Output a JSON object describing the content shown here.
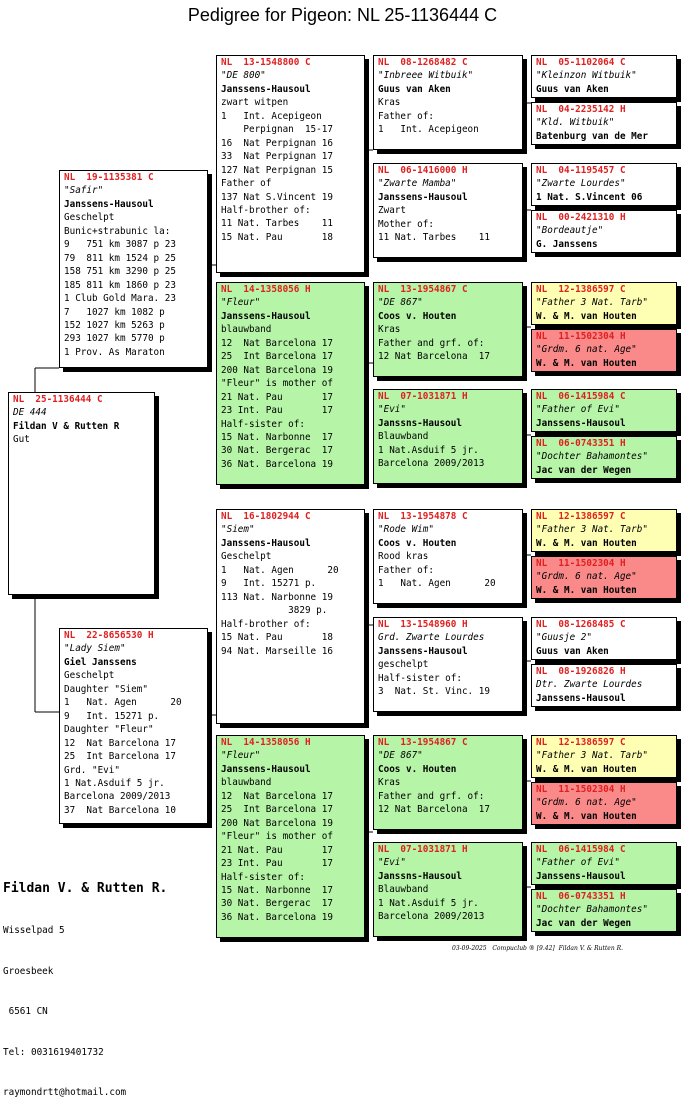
{
  "title": "Pedigree for Pigeon: NL  25-1136444 C",
  "cards": [
    {
      "ring": "NL  25-1136444 C",
      "lines": [
        {
          "t": "DE 444",
          "s": "nm"
        },
        {
          "t": "Fildan V & Rutten R",
          "s": "ow"
        },
        {
          "t": "Gut"
        }
      ]
    },
    {
      "ring": "NL  19-1135381 C",
      "lines": [
        {
          "t": "\"Safir\"",
          "s": "nm"
        },
        {
          "t": "Janssens-Hausoul",
          "s": "ow"
        },
        {
          "t": "Geschelpt"
        },
        {
          "t": "Bunic+strabunic la:"
        },
        {
          "t": "9   751 km 3087 p 23"
        },
        {
          "t": "79  811 km 1524 p 25"
        },
        {
          "t": "158 751 km 3290 p 25"
        },
        {
          "t": "185 811 km 1860 p 23"
        },
        {
          "t": "1 Club Gold Mara. 23"
        },
        {
          "t": "7   1027 km 1082 p"
        },
        {
          "t": "152 1027 km 5263 p"
        },
        {
          "t": "293 1027 km 5770 p"
        },
        {
          "t": "1 Prov. As Maraton"
        }
      ]
    },
    {
      "ring": "NL  22-8656530 H",
      "lines": [
        {
          "t": "\"Lady Siem\"",
          "s": "nm"
        },
        {
          "t": "Giel Janssens",
          "s": "ow"
        },
        {
          "t": "Geschelpt"
        },
        {
          "t": "Daughter \"Siem\""
        },
        {
          "t": "1   Nat. Agen      20"
        },
        {
          "t": "9   Int. 15271 p."
        },
        {
          "t": "Daughter \"Fleur\""
        },
        {
          "t": "12  Nat Barcelona 17"
        },
        {
          "t": "25  Int Barcelona 17"
        },
        {
          "t": "Grd. \"Evi\""
        },
        {
          "t": "1 Nat.Asduif 5 jr."
        },
        {
          "t": "Barcelona 2009/2013"
        },
        {
          "t": "37  Nat Barcelona 10"
        }
      ]
    },
    {
      "ring": "NL  13-1548800 C",
      "lines": [
        {
          "t": "\"DE 800\"",
          "s": "nm"
        },
        {
          "t": "Janssens-Hausoul",
          "s": "ow"
        },
        {
          "t": "zwart witpen"
        },
        {
          "t": "1   Int. Acepigeon"
        },
        {
          "t": "    Perpignan  15-17"
        },
        {
          "t": "16  Nat Perpignan 16"
        },
        {
          "t": "33  Nat Perpignan 17"
        },
        {
          "t": "127 Nat Perpignan 15"
        },
        {
          "t": "Father of"
        },
        {
          "t": "137 Nat S.Vincent 19"
        },
        {
          "t": "Half-brother of:"
        },
        {
          "t": "11 Nat. Tarbes    11"
        },
        {
          "t": "15 Nat. Pau       18"
        }
      ]
    },
    {
      "ring": "NL  14-1358056 H",
      "lines": [
        {
          "t": "\"Fleur\"",
          "s": "nm"
        },
        {
          "t": "Janssens-Hausoul",
          "s": "ow"
        },
        {
          "t": "blauwband"
        },
        {
          "t": "12  Nat Barcelona 17"
        },
        {
          "t": "25  Int Barcelona 17"
        },
        {
          "t": "200 Nat Barcelona 19"
        },
        {
          "t": "\"Fleur\" is mother of"
        },
        {
          "t": "21 Nat. Pau       17"
        },
        {
          "t": "23 Int. Pau       17"
        },
        {
          "t": "Half-sister of:"
        },
        {
          "t": "15 Nat. Narbonne  17"
        },
        {
          "t": "30 Nat. Bergerac  17"
        },
        {
          "t": "36 Nat. Barcelona 19"
        }
      ]
    },
    {
      "ring": "NL  16-1802944 C",
      "lines": [
        {
          "t": "\"Siem\"",
          "s": "nm"
        },
        {
          "t": "Janssens-Hausoul",
          "s": "ow"
        },
        {
          "t": "Geschelpt"
        },
        {
          "t": "1   Nat. Agen      20"
        },
        {
          "t": "9   Int. 15271 p."
        },
        {
          "t": "113 Nat. Narbonne 19"
        },
        {
          "t": "            3829 p."
        },
        {
          "t": "Half-brother of:"
        },
        {
          "t": "15 Nat. Pau       18"
        },
        {
          "t": "94 Nat. Marseille 16"
        }
      ]
    },
    {
      "ring": "NL  14-1358056 H",
      "lines": [
        {
          "t": "\"Fleur\"",
          "s": "nm"
        },
        {
          "t": "Janssens-Hausoul",
          "s": "ow"
        },
        {
          "t": "blauwband"
        },
        {
          "t": "12  Nat Barcelona 17"
        },
        {
          "t": "25  Int Barcelona 17"
        },
        {
          "t": "200 Nat Barcelona 19"
        },
        {
          "t": "\"Fleur\" is mother of"
        },
        {
          "t": "21 Nat. Pau       17"
        },
        {
          "t": "23 Int. Pau       17"
        },
        {
          "t": "Half-sister of:"
        },
        {
          "t": "15 Nat. Narbonne  17"
        },
        {
          "t": "30 Nat. Bergerac  17"
        },
        {
          "t": "36 Nat. Barcelona 19"
        }
      ]
    },
    {
      "ring": "NL  08-1268482 C",
      "lines": [
        {
          "t": "\"Inbreee Witbuik\"",
          "s": "nm"
        },
        {
          "t": "Guus van Aken",
          "s": "ow"
        },
        {
          "t": "Kras"
        },
        {
          "t": "Father of:"
        },
        {
          "t": "1   Int. Acepigeon"
        }
      ]
    },
    {
      "ring": "NL  06-1416000 H",
      "lines": [
        {
          "t": "\"Zwarte Mamba\"",
          "s": "nm"
        },
        {
          "t": "Janssens-Hausoul",
          "s": "ow"
        },
        {
          "t": "Zwart"
        },
        {
          "t": "Mother of:"
        },
        {
          "t": "11 Nat. Tarbes    11"
        }
      ]
    },
    {
      "ring": "NL  13-1954867 C",
      "lines": [
        {
          "t": "\"DE 867\"",
          "s": "nm"
        },
        {
          "t": "Coos v. Houten",
          "s": "ow"
        },
        {
          "t": "Kras"
        },
        {
          "t": "Father and grf. of:"
        },
        {
          "t": "12 Nat Barcelona  17"
        }
      ]
    },
    {
      "ring": "NL  07-1031871 H",
      "lines": [
        {
          "t": "\"Evi\"",
          "s": "nm"
        },
        {
          "t": "Janssns-Hausoul",
          "s": "ow"
        },
        {
          "t": "Blauwband"
        },
        {
          "t": "1 Nat.Asduif 5 jr."
        },
        {
          "t": "Barcelona 2009/2013"
        }
      ]
    },
    {
      "ring": "NL  13-1954878 C",
      "lines": [
        {
          "t": "\"Rode Wim\"",
          "s": "nm"
        },
        {
          "t": "Coos v. Houten",
          "s": "ow"
        },
        {
          "t": "Rood kras"
        },
        {
          "t": "Father of:"
        },
        {
          "t": "1   Nat. Agen      20"
        }
      ]
    },
    {
      "ring": "NL  13-1548960 H",
      "lines": [
        {
          "t": "Grd. Zwarte Lourdes",
          "s": "nm"
        },
        {
          "t": "Janssens-Hausoul",
          "s": "ow"
        },
        {
          "t": "geschelpt"
        },
        {
          "t": "Half-sister of:"
        },
        {
          "t": "3  Nat. St. Vinc. 19"
        }
      ]
    },
    {
      "ring": "NL  13-1954867 C",
      "lines": [
        {
          "t": "\"DE 867\"",
          "s": "nm"
        },
        {
          "t": "Coos v. Houten",
          "s": "ow"
        },
        {
          "t": "Kras"
        },
        {
          "t": "Father and grf. of:"
        },
        {
          "t": "12 Nat Barcelona  17"
        }
      ]
    },
    {
      "ring": "NL  07-1031871 H",
      "lines": [
        {
          "t": "\"Evi\"",
          "s": "nm"
        },
        {
          "t": "Janssns-Hausoul",
          "s": "ow"
        },
        {
          "t": "Blauwband"
        },
        {
          "t": "1 Nat.Asduif 5 jr."
        },
        {
          "t": "Barcelona 2009/2013"
        }
      ]
    },
    {
      "ring": "NL  05-1102064 C",
      "lines": [
        {
          "t": "\"Kleinzon Witbuik\"",
          "s": "nm"
        },
        {
          "t": "Guus van Aken",
          "s": "ow"
        }
      ]
    },
    {
      "ring": "NL  04-2235142 H",
      "lines": [
        {
          "t": "\"Kld. Witbuik\"",
          "s": "nm"
        },
        {
          "t": "Batenburg van de Mer",
          "s": "ow"
        }
      ]
    },
    {
      "ring": "NL  04-1195457 C",
      "lines": [
        {
          "t": "\"Zwarte Lourdes\"",
          "s": "nm"
        },
        {
          "t": "1 Nat. S.Vincent 06",
          "s": "ow"
        }
      ]
    },
    {
      "ring": "NL  00-2421310 H",
      "lines": [
        {
          "t": "\"Bordeautje\"",
          "s": "nm"
        },
        {
          "t": "G. Janssens",
          "s": "ow"
        }
      ]
    },
    {
      "ring": "NL  12-1386597 C",
      "lines": [
        {
          "t": "\"Father 3 Nat. Tarb\"",
          "s": "nm"
        },
        {
          "t": "W. & M. van Houten",
          "s": "ow"
        }
      ]
    },
    {
      "ring": "NL  11-1502304 H",
      "lines": [
        {
          "t": "\"Grdm. 6 nat. Age\"",
          "s": "nm"
        },
        {
          "t": "W. & M. van Houten",
          "s": "ow"
        }
      ]
    },
    {
      "ring": "NL  06-1415984 C",
      "lines": [
        {
          "t": "\"Father of Evi\"",
          "s": "nm"
        },
        {
          "t": "Janssens-Hausoul",
          "s": "ow"
        }
      ]
    },
    {
      "ring": "NL  06-0743351 H",
      "lines": [
        {
          "t": "\"Dochter Bahamontes\"",
          "s": "nm"
        },
        {
          "t": "Jac van der Wegen",
          "s": "ow"
        }
      ]
    },
    {
      "ring": "NL  12-1386597 C",
      "lines": [
        {
          "t": "\"Father 3 Nat. Tarb\"",
          "s": "nm"
        },
        {
          "t": "W. & M. van Houten",
          "s": "ow"
        }
      ]
    },
    {
      "ring": "NL  11-1502304 H",
      "lines": [
        {
          "t": "\"Grdm. 6 nat. Age\"",
          "s": "nm"
        },
        {
          "t": "W. & M. van Houten",
          "s": "ow"
        }
      ]
    },
    {
      "ring": "NL  08-1268485 C",
      "lines": [
        {
          "t": "\"Guusje 2\"",
          "s": "nm"
        },
        {
          "t": "Guus van Aken",
          "s": "ow"
        }
      ]
    },
    {
      "ring": "NL  08-1926826 H",
      "lines": [
        {
          "t": "Dtr. Zwarte Lourdes",
          "s": "nm"
        },
        {
          "t": "Janssens-Hausoul",
          "s": "ow"
        }
      ]
    },
    {
      "ring": "NL  12-1386597 C",
      "lines": [
        {
          "t": "\"Father 3 Nat. Tarb\"",
          "s": "nm"
        },
        {
          "t": "W. & M. van Houten",
          "s": "ow"
        }
      ]
    },
    {
      "ring": "NL  11-1502304 H",
      "lines": [
        {
          "t": "\"Grdm. 6 nat. Age\"",
          "s": "nm"
        },
        {
          "t": "W. & M. van Houten",
          "s": "ow"
        }
      ]
    },
    {
      "ring": "NL  06-1415984 C",
      "lines": [
        {
          "t": "\"Father of Evi\"",
          "s": "nm"
        },
        {
          "t": "Janssens-Hausoul",
          "s": "ow"
        }
      ]
    },
    {
      "ring": "NL  06-0743351 H",
      "lines": [
        {
          "t": "\"Dochter Bahamontes\"",
          "s": "nm"
        },
        {
          "t": "Jac van der Wegen",
          "s": "ow"
        }
      ]
    }
  ],
  "breeder": {
    "name": "Fildan V. & Rutten R.",
    "street": "Wisselpad 5",
    "city": "Groesbeek",
    "zip": " 6561 CN",
    "tel": "Tel: 0031619401732",
    "email": "raymondrtt@hotmail.com"
  },
  "footer": "03-09-2025   Compuclub ® [9.42]  Fildan V. & Rutten R."
}
